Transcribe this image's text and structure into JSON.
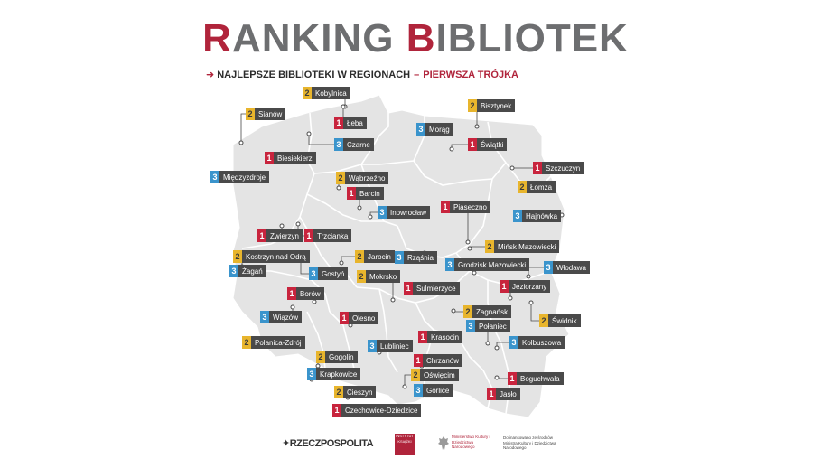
{
  "header": {
    "title_letter_1": "R",
    "title_part_1": "ANKING ",
    "title_letter_2": "B",
    "title_part_2": "IBLIOTEK",
    "subtitle_main": "NAJLEPSZE BIBLIOTEKI W REGIONACH",
    "subtitle_dash": "–",
    "subtitle_highlight": "PIERWSZA TRÓJKA"
  },
  "colors": {
    "rank_1": "#c8243d",
    "rank_2": "#e8b52d",
    "rank_3": "#3a94cc",
    "map_fill": "#e4e4e4",
    "label_bg": "#4a4a4a",
    "brand_red": "#b0243b"
  },
  "libraries": [
    {
      "rank": "2",
      "name": "Kobylnica"
    },
    {
      "rank": "2",
      "name": "Sianów"
    },
    {
      "rank": "1",
      "name": "Łeba"
    },
    {
      "rank": "2",
      "name": "Bisztynek"
    },
    {
      "rank": "3",
      "name": "Morąg"
    },
    {
      "rank": "3",
      "name": "Czarne"
    },
    {
      "rank": "1",
      "name": "Świątki"
    },
    {
      "rank": "1",
      "name": "Biesiekierz"
    },
    {
      "rank": "1",
      "name": "Szczuczyn"
    },
    {
      "rank": "3",
      "name": "Międzyzdroje"
    },
    {
      "rank": "2",
      "name": "Wąbrzeźno"
    },
    {
      "rank": "2",
      "name": "Łomża"
    },
    {
      "rank": "1",
      "name": "Barcin"
    },
    {
      "rank": "1",
      "name": "Piaseczno"
    },
    {
      "rank": "3",
      "name": "Inowrocław"
    },
    {
      "rank": "3",
      "name": "Hajnówka"
    },
    {
      "rank": "1",
      "name": "Zwierzyn"
    },
    {
      "rank": "1",
      "name": "Trzcianka"
    },
    {
      "rank": "2",
      "name": "Mińsk Mazowiecki"
    },
    {
      "rank": "2",
      "name": "Kostrzyn nad Odrą"
    },
    {
      "rank": "2",
      "name": "Jarocin"
    },
    {
      "rank": "3",
      "name": "Rząśnia"
    },
    {
      "rank": "3",
      "name": "Grodzisk Mazowiecki"
    },
    {
      "rank": "3",
      "name": "Żagań"
    },
    {
      "rank": "3",
      "name": "Gostyń"
    },
    {
      "rank": "3",
      "name": "Włodawa"
    },
    {
      "rank": "2",
      "name": "Mokrsko"
    },
    {
      "rank": "1",
      "name": "Sulmierzyce"
    },
    {
      "rank": "1",
      "name": "Jeziorzany"
    },
    {
      "rank": "1",
      "name": "Borów"
    },
    {
      "rank": "2",
      "name": "Zagnańsk"
    },
    {
      "rank": "3",
      "name": "Wiązów"
    },
    {
      "rank": "1",
      "name": "Olesno"
    },
    {
      "rank": "2",
      "name": "Świdnik"
    },
    {
      "rank": "3",
      "name": "Połaniec"
    },
    {
      "rank": "2",
      "name": "Polanica-Zdrój"
    },
    {
      "rank": "1",
      "name": "Krasocin"
    },
    {
      "rank": "3",
      "name": "Lubliniec"
    },
    {
      "rank": "3",
      "name": "Kolbuszowa"
    },
    {
      "rank": "2",
      "name": "Gogolin"
    },
    {
      "rank": "1",
      "name": "Chrzanów"
    },
    {
      "rank": "3",
      "name": "Krapkowice"
    },
    {
      "rank": "2",
      "name": "Oświęcim"
    },
    {
      "rank": "1",
      "name": "Boguchwała"
    },
    {
      "rank": "3",
      "name": "Gorlice"
    },
    {
      "rank": "2",
      "name": "Cieszyn"
    },
    {
      "rank": "1",
      "name": "Jasło"
    },
    {
      "rank": "1",
      "name": "Czechowice-Dziedzice"
    }
  ],
  "footer": {
    "logo_rzeczpospolita": "RZECZPOSPOLITA",
    "logo_box_text": "INSTYTUT KSIĄŻKI",
    "logo_ministry": "Ministerstwo Kultury i Dziedzictwa Narodowego",
    "logo_cofinanced": "Dofinansowano ze środków Ministra Kultury i Dziedzictwa Narodowego"
  }
}
